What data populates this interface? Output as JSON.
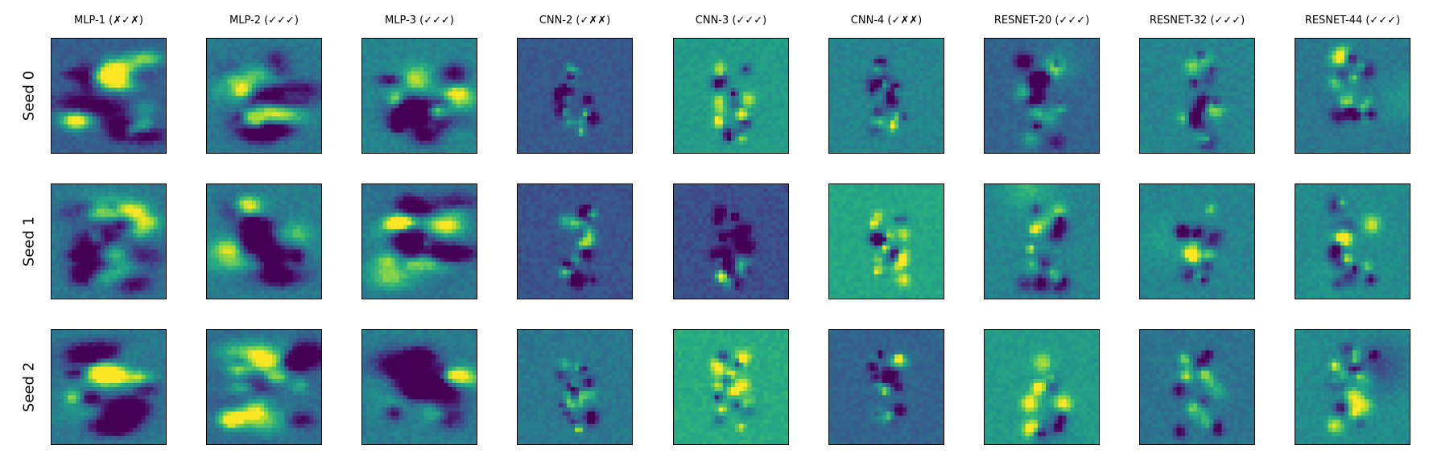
{
  "chart_data": {
    "type": "heatmap",
    "colormap": "viridis",
    "colors": {
      "low": "#440154",
      "mid": "#21918c",
      "high": "#fde725"
    },
    "columns": [
      "MLP-1 (✗✓✗)",
      "MLP-2 (✓✓✓)",
      "MLP-3 (✓✓✓)",
      "CNN-2 (✓✗✗)",
      "CNN-3 (✓✓✓)",
      "CNN-4 (✓✗✗)",
      "RESNET-20 (✓✓✓)",
      "RESNET-32 (✓✓✓)",
      "RESNET-44 (✓✓✓)"
    ],
    "rows": [
      "Seed 0",
      "Seed 1",
      "Seed 2"
    ],
    "cells": [
      [
        {
          "style": "mlp",
          "bg": 0.3,
          "seed": 11
        },
        {
          "style": "mlp",
          "bg": 0.4,
          "seed": 12
        },
        {
          "style": "mlp",
          "bg": 0.45,
          "seed": 13
        },
        {
          "style": "cnn",
          "bg": 0.28,
          "seed": 14
        },
        {
          "style": "cnn",
          "bg": 0.55,
          "seed": 15
        },
        {
          "style": "cnn",
          "bg": 0.45,
          "seed": 16
        },
        {
          "style": "resnet",
          "bg": 0.32,
          "seed": 17
        },
        {
          "style": "resnet",
          "bg": 0.45,
          "seed": 18
        },
        {
          "style": "resnet",
          "bg": 0.4,
          "seed": 19
        }
      ],
      [
        {
          "style": "mlp",
          "bg": 0.4,
          "seed": 21
        },
        {
          "style": "mlp",
          "bg": 0.42,
          "seed": 22
        },
        {
          "style": "mlp",
          "bg": 0.38,
          "seed": 23
        },
        {
          "style": "cnn",
          "bg": 0.26,
          "seed": 24
        },
        {
          "style": "cnn",
          "bg": 0.25,
          "seed": 25
        },
        {
          "style": "cnn",
          "bg": 0.6,
          "seed": 26
        },
        {
          "style": "resnet",
          "bg": 0.45,
          "seed": 27
        },
        {
          "style": "resnet",
          "bg": 0.45,
          "seed": 28
        },
        {
          "style": "resnet",
          "bg": 0.48,
          "seed": 29
        }
      ],
      [
        {
          "style": "mlp",
          "bg": 0.4,
          "seed": 31
        },
        {
          "style": "mlp",
          "bg": 0.35,
          "seed": 32
        },
        {
          "style": "mlp",
          "bg": 0.42,
          "seed": 33
        },
        {
          "style": "cnn",
          "bg": 0.4,
          "seed": 34
        },
        {
          "style": "cnn",
          "bg": 0.62,
          "seed": 35
        },
        {
          "style": "cnn",
          "bg": 0.32,
          "seed": 36
        },
        {
          "style": "resnet",
          "bg": 0.55,
          "seed": 37
        },
        {
          "style": "resnet",
          "bg": 0.38,
          "seed": 38
        },
        {
          "style": "resnet",
          "bg": 0.48,
          "seed": 39
        }
      ]
    ]
  }
}
